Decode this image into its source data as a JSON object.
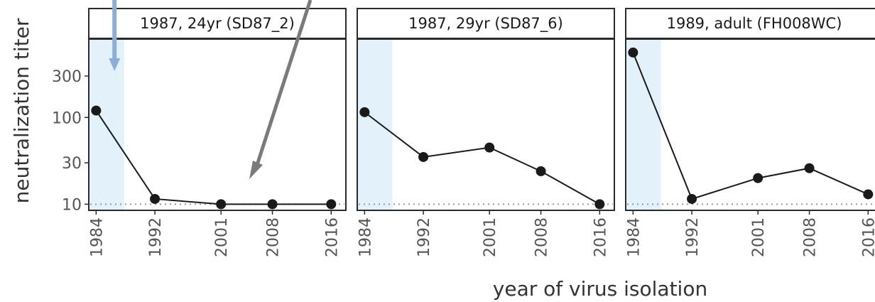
{
  "chart_data": {
    "type": "line",
    "ylabel": "neutralization titer",
    "xlabel": "year of virus isolation",
    "x": [
      1984,
      1992,
      2001,
      2008,
      2016
    ],
    "x_tick_labels": [
      "1984",
      "1992",
      "2001",
      "2008",
      "2016"
    ],
    "y_scale": "log",
    "y_ticks": [
      10,
      30,
      100,
      300
    ],
    "y_tick_labels": [
      "10",
      "30",
      "100",
      "300"
    ],
    "ylim": [
      8.5,
      800
    ],
    "limit_of_detection": 10,
    "shaded_region_x": [
      1983,
      1987.8
    ],
    "colors": {
      "line": "#1a1a1a",
      "shade": "#e3f1fb",
      "reference": "#999999",
      "arrow_blue": "#8eaed3",
      "arrow_gray": "#7a7a7a"
    },
    "panels": [
      {
        "title": "1987, 24yr (SD87_2)",
        "values": [
          120,
          11.5,
          10,
          10,
          10
        ]
      },
      {
        "title": "1987, 29yr (SD87_6)",
        "values": [
          115,
          35,
          45,
          24,
          10
        ]
      },
      {
        "title": "1989, adult (FH008WC)",
        "values": [
          560,
          11.5,
          20,
          26,
          13
        ]
      }
    ]
  }
}
